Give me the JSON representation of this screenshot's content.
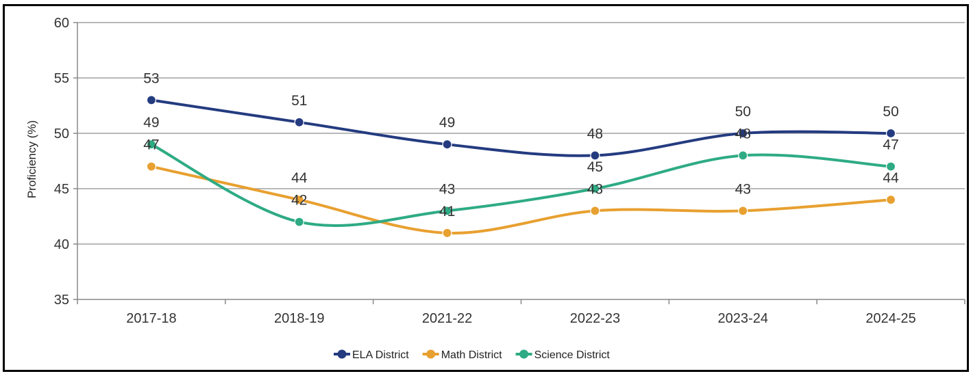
{
  "chart_data": {
    "type": "line",
    "title": "",
    "xlabel": "",
    "ylabel": "Proficiency (%)",
    "ylim": [
      35,
      60
    ],
    "yticks": [
      35,
      40,
      45,
      50,
      55,
      60
    ],
    "categories": [
      "2017-18",
      "2018-19",
      "2021-22",
      "2022-23",
      "2023-24",
      "2024-25"
    ],
    "grid": true,
    "legend_position": "bottom",
    "series": [
      {
        "name": "ELA District",
        "color": "#243b80",
        "values": [
          53,
          51,
          49,
          48,
          50,
          50
        ]
      },
      {
        "name": "Math District",
        "color": "#e8a030",
        "values": [
          47,
          44,
          41,
          43,
          43,
          44
        ]
      },
      {
        "name": "Science District",
        "color": "#2eab84",
        "values": [
          49,
          42,
          43,
          45,
          48,
          47
        ]
      }
    ]
  }
}
